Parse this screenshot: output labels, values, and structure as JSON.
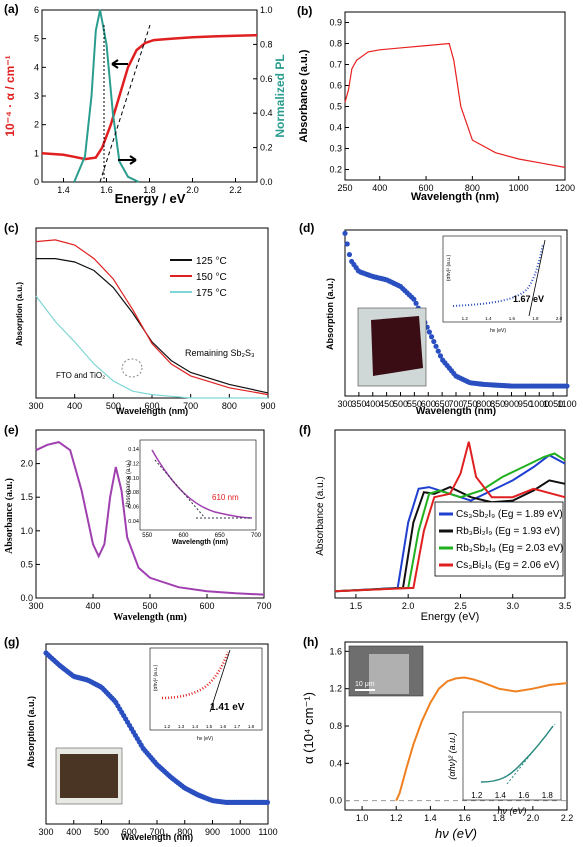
{
  "panels": [
    {
      "id": "a",
      "label": "(a)",
      "xlabel": "Energy / eV",
      "ylabel_left": "10⁻⁴ · α / cm⁻¹",
      "ylabel_right": "Normalized PL",
      "xticks": [
        "1.4",
        "1.6",
        "1.8",
        "2.0",
        "2.2"
      ],
      "yticks_left": [
        "0",
        "1",
        "2",
        "3",
        "4",
        "5",
        "6"
      ],
      "yticks_right": [
        "0.0",
        "0.2",
        "0.4",
        "0.6",
        "0.8",
        "1.0"
      ],
      "colors": {
        "absorption": "#e02020",
        "pl": "#2a9d8f"
      }
    },
    {
      "id": "b",
      "label": "(b)",
      "xlabel": "Wavelength (nm)",
      "ylabel": "Absorbance (a.u.)",
      "xticks": [
        "250",
        "400",
        "600",
        "800",
        "1000",
        "1200"
      ],
      "yticks": [
        "0.2",
        "0.3",
        "0.4",
        "0.5",
        "0.6",
        "0.7",
        "0.8",
        "0.9"
      ],
      "colors": {
        "line": "#e82020"
      }
    },
    {
      "id": "c",
      "label": "(c)",
      "xlabel": "Wavelength (nm)",
      "ylabel": "Absorption (a.u.)",
      "xticks": [
        "300",
        "400",
        "500",
        "600",
        "700",
        "800",
        "900"
      ],
      "legend": [
        "125 °C",
        "150 °C",
        "175 °C"
      ],
      "annotations": [
        "FTO and TiO₂",
        "Remaining Sb₂S₃"
      ],
      "colors": {
        "s125": "#111111",
        "s150": "#e02020",
        "s175": "#7fd6d6"
      }
    },
    {
      "id": "d",
      "label": "(d)",
      "xlabel": "Wavelength (nm)",
      "ylabel": "Absorption (a.u.)",
      "xticks": [
        "300",
        "350",
        "400",
        "450",
        "500",
        "550",
        "600",
        "650",
        "700",
        "750",
        "800",
        "850",
        "900",
        "950",
        "1000",
        "1050",
        "1100"
      ],
      "inset": {
        "label": "1.67 eV",
        "xlabel": "hν (eV)",
        "ylabel": "(αhν)² (a.u.)",
        "xticks": [
          "1.2",
          "1.4",
          "1.6",
          "1.8",
          "2.0"
        ]
      },
      "colors": {
        "points": "#2a4fc0"
      }
    },
    {
      "id": "e",
      "label": "(e)",
      "xlabel": "Wavelength (nm)",
      "ylabel": "Absorbance (a.u.)",
      "xticks": [
        "300",
        "400",
        "500",
        "600",
        "700"
      ],
      "yticks": [
        "0.0",
        "0.5",
        "1.0",
        "1.5",
        "2.0"
      ],
      "inset": {
        "label": "610 nm",
        "xlabel": "Wavelength (nm)",
        "ylabel": "Absorbance (a.u.)",
        "xticks": [
          "550",
          "600",
          "650",
          "700"
        ],
        "yticks": [
          "0.04",
          "0.06",
          "0.08",
          "0.10",
          "0.12",
          "0.14"
        ]
      },
      "colors": {
        "line": "#a040b0",
        "marker": "#e02020"
      }
    },
    {
      "id": "f",
      "label": "(f)",
      "xlabel": "Energy (eV)",
      "ylabel": "Absorbance (a.u.)",
      "xticks": [
        "1.5",
        "2.0",
        "2.5",
        "3.0",
        "3.5"
      ],
      "legend": [
        "Cs₃Sb₂I₉ (Eg = 1.89 eV)",
        "Rb₃Bi₂I₉ (Eg = 1.93 eV)",
        "Rb₃Sb₂I₉ (Eg = 2.03 eV)",
        "Cs₃Bi₂I₉ (Eg = 2.06 eV)"
      ],
      "colors": {
        "cs_sb": "#1f3fd0",
        "rb_bi": "#111111",
        "rb_sb": "#20b020",
        "cs_bi": "#e02020"
      }
    },
    {
      "id": "g",
      "label": "(g)",
      "xlabel": "Wavelength (nm)",
      "ylabel": "Absorption (a.u.)",
      "xticks": [
        "300",
        "400",
        "500",
        "600",
        "700",
        "800",
        "900",
        "1000",
        "1100"
      ],
      "inset": {
        "label": "1.41 eV",
        "xlabel": "hν (eV)",
        "ylabel": "(αhν)² (a.u.)",
        "xticks": [
          "1.2",
          "1.3",
          "1.4",
          "1.5",
          "1.6",
          "1.7",
          "1.8"
        ]
      },
      "colors": {
        "points": "#2a4fc0",
        "inset_points": "#e02020"
      }
    },
    {
      "id": "h",
      "label": "(h)",
      "xlabel": "hν (eV)",
      "ylabel": "α (10⁴ cm⁻¹)",
      "xticks": [
        "1.0",
        "1.2",
        "1.4",
        "1.6",
        "1.8",
        "2.0",
        "2.2"
      ],
      "yticks": [
        "0.0",
        "0.4",
        "0.8",
        "1.2",
        "1.6"
      ],
      "scale_bar": "10 μm",
      "inset": {
        "xlabel": "hν (eV)",
        "ylabel": "(αhν)² (a.u.)",
        "xticks": [
          "1.2",
          "1.4",
          "1.6",
          "1.8"
        ]
      },
      "colors": {
        "line": "#f08020",
        "inset_line": "#2a8a80"
      }
    }
  ],
  "chart_data": [
    {
      "panel": "a",
      "type": "line",
      "xlim": [
        1.3,
        2.3
      ],
      "ylim_left": [
        0,
        6
      ],
      "ylim_right": [
        0,
        1
      ],
      "series": [
        {
          "axis": "left",
          "x": [
            1.3,
            1.4,
            1.45,
            1.5,
            1.55,
            1.58,
            1.62,
            1.66,
            1.7,
            1.74,
            1.78,
            1.82,
            1.9,
            2.0,
            2.1,
            2.2,
            2.3
          ],
          "y": [
            1.0,
            0.95,
            0.88,
            0.8,
            0.85,
            1.2,
            2.0,
            3.0,
            4.0,
            4.6,
            4.85,
            4.95,
            5.0,
            5.05,
            5.08,
            5.1,
            5.12
          ]
        },
        {
          "axis": "right",
          "x": [
            1.45,
            1.5,
            1.53,
            1.55,
            1.57,
            1.6,
            1.63,
            1.66,
            1.7,
            1.75
          ],
          "y": [
            0.0,
            0.15,
            0.5,
            0.88,
            1.0,
            0.8,
            0.4,
            0.12,
            0.03,
            0.0
          ]
        }
      ]
    },
    {
      "panel": "b",
      "type": "line",
      "xlim": [
        250,
        1200
      ],
      "ylim": [
        0.15,
        0.95
      ],
      "series": [
        {
          "x": [
            250,
            265,
            280,
            300,
            350,
            400,
            500,
            600,
            700,
            720,
            750,
            800,
            900,
            1000,
            1100,
            1200
          ],
          "y": [
            0.52,
            0.58,
            0.68,
            0.72,
            0.76,
            0.77,
            0.78,
            0.79,
            0.8,
            0.72,
            0.5,
            0.34,
            0.28,
            0.25,
            0.23,
            0.21
          ]
        }
      ]
    },
    {
      "panel": "c",
      "type": "line",
      "xlim": [
        300,
        900
      ],
      "ylim": [
        0,
        1
      ],
      "series": [
        {
          "x": [
            300,
            350,
            400,
            450,
            500,
            550,
            600,
            650,
            700,
            800,
            900
          ],
          "y": [
            0.82,
            0.82,
            0.8,
            0.75,
            0.65,
            0.5,
            0.33,
            0.22,
            0.15,
            0.08,
            0.03
          ]
        },
        {
          "x": [
            300,
            350,
            400,
            450,
            500,
            550,
            600,
            650,
            700,
            800,
            900
          ],
          "y": [
            0.92,
            0.93,
            0.9,
            0.82,
            0.7,
            0.52,
            0.32,
            0.2,
            0.13,
            0.06,
            0.02
          ]
        },
        {
          "x": [
            300,
            350,
            400,
            450,
            500,
            550,
            600,
            650,
            700,
            800,
            900
          ],
          "y": [
            0.6,
            0.45,
            0.33,
            0.2,
            0.1,
            0.04,
            0.02,
            0.01,
            0.0,
            0.0,
            0.0
          ]
        }
      ]
    },
    {
      "panel": "d",
      "type": "scatter",
      "xlim": [
        300,
        1100
      ],
      "ylim": [
        0,
        1
      ],
      "series": [
        {
          "x": [
            300,
            320,
            350,
            400,
            450,
            500,
            550,
            600,
            650,
            700,
            750,
            800,
            900,
            1000,
            1100
          ],
          "y": [
            0.98,
            0.82,
            0.75,
            0.72,
            0.7,
            0.66,
            0.58,
            0.4,
            0.22,
            0.12,
            0.08,
            0.07,
            0.06,
            0.06,
            0.06
          ]
        }
      ]
    },
    {
      "panel": "e",
      "type": "line",
      "xlim": [
        300,
        700
      ],
      "ylim": [
        0,
        2.5
      ],
      "series": [
        {
          "x": [
            300,
            320,
            340,
            360,
            380,
            400,
            410,
            420,
            430,
            440,
            450,
            460,
            480,
            500,
            550,
            600,
            650,
            700
          ],
          "y": [
            2.2,
            2.28,
            2.32,
            2.2,
            1.6,
            0.8,
            0.62,
            0.8,
            1.5,
            1.95,
            1.6,
            0.9,
            0.45,
            0.3,
            0.16,
            0.1,
            0.07,
            0.05
          ]
        }
      ]
    },
    {
      "panel": "f",
      "type": "line",
      "xlim": [
        1.3,
        3.5
      ],
      "ylim": [
        0,
        1
      ],
      "series": [
        {
          "x": [
            1.3,
            1.9,
            2.0,
            2.1,
            2.2,
            2.4,
            2.6,
            2.8,
            3.0,
            3.2,
            3.35,
            3.5
          ],
          "y": [
            0.04,
            0.06,
            0.45,
            0.65,
            0.66,
            0.62,
            0.58,
            0.64,
            0.7,
            0.78,
            0.85,
            0.8
          ]
        },
        {
          "x": [
            1.3,
            1.95,
            2.05,
            2.15,
            2.25,
            2.4,
            2.6,
            2.8,
            3.0,
            3.2,
            3.35,
            3.5
          ],
          "y": [
            0.04,
            0.06,
            0.45,
            0.63,
            0.62,
            0.66,
            0.6,
            0.57,
            0.58,
            0.64,
            0.7,
            0.68
          ]
        },
        {
          "x": [
            1.3,
            2.0,
            2.1,
            2.2,
            2.3,
            2.5,
            2.7,
            2.9,
            3.1,
            3.3,
            3.4,
            3.5
          ],
          "y": [
            0.04,
            0.06,
            0.4,
            0.62,
            0.64,
            0.6,
            0.64,
            0.72,
            0.78,
            0.84,
            0.86,
            0.82
          ]
        },
        {
          "x": [
            1.3,
            2.05,
            2.15,
            2.25,
            2.4,
            2.5,
            2.58,
            2.65,
            2.8,
            3.0,
            3.2,
            3.5
          ],
          "y": [
            0.04,
            0.06,
            0.4,
            0.6,
            0.62,
            0.74,
            0.93,
            0.72,
            0.6,
            0.6,
            0.65,
            0.6
          ]
        }
      ]
    },
    {
      "panel": "g",
      "type": "scatter",
      "xlim": [
        300,
        1100
      ],
      "ylim": [
        0,
        1
      ],
      "series": [
        {
          "x": [
            300,
            350,
            400,
            450,
            500,
            550,
            600,
            650,
            700,
            750,
            800,
            850,
            900,
            950,
            1000,
            1100
          ],
          "y": [
            0.95,
            0.88,
            0.82,
            0.8,
            0.76,
            0.68,
            0.55,
            0.42,
            0.33,
            0.26,
            0.2,
            0.16,
            0.13,
            0.12,
            0.12,
            0.12
          ]
        }
      ]
    },
    {
      "panel": "h",
      "type": "line",
      "xlim": [
        0.9,
        2.2
      ],
      "ylim": [
        -0.1,
        1.7
      ],
      "series": [
        {
          "x": [
            1.2,
            1.22,
            1.26,
            1.3,
            1.35,
            1.4,
            1.45,
            1.5,
            1.55,
            1.6,
            1.65,
            1.7,
            1.8,
            1.9,
            2.0,
            2.1,
            2.2
          ],
          "y": [
            0.0,
            0.08,
            0.35,
            0.6,
            0.85,
            1.05,
            1.2,
            1.28,
            1.31,
            1.32,
            1.3,
            1.27,
            1.2,
            1.17,
            1.2,
            1.24,
            1.26
          ]
        }
      ]
    }
  ]
}
